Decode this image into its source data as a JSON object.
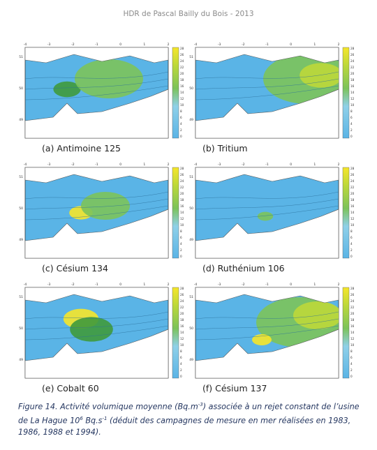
{
  "header": {
    "title": "HDR de Pascal Bailly du Bois - 2013"
  },
  "map_axes": {
    "x_ticks": [
      "-4",
      "-3",
      "-2",
      "-1",
      "0",
      "1",
      "2"
    ],
    "y_ticks": [
      "51",
      "50",
      "49"
    ],
    "colorbar_ticks": [
      "0",
      "2",
      "4",
      "6",
      "8",
      "10",
      "12",
      "14",
      "16",
      "18",
      "20",
      "22",
      "24",
      "26",
      "28"
    ]
  },
  "panels": [
    {
      "label": "(a) Antimoine 125"
    },
    {
      "label": "(b) Tritium"
    },
    {
      "label": "(c) Césium 134"
    },
    {
      "label": "(d) Ruthénium 106"
    },
    {
      "label": "(e) Cobalt 60"
    },
    {
      "label": "(f) Césium 137"
    }
  ],
  "caption": {
    "parts": [
      "Figure 14. Activité volumique moyenne (Bq.m",
      "-3",
      ") associée à un rejet constant de l’usine de La Hague 10",
      "6",
      " Bq.s",
      "-1",
      " (déduit des campagnes de mesure en mer réalisées en 1983, 1986, 1988 et 1994)."
    ]
  }
}
